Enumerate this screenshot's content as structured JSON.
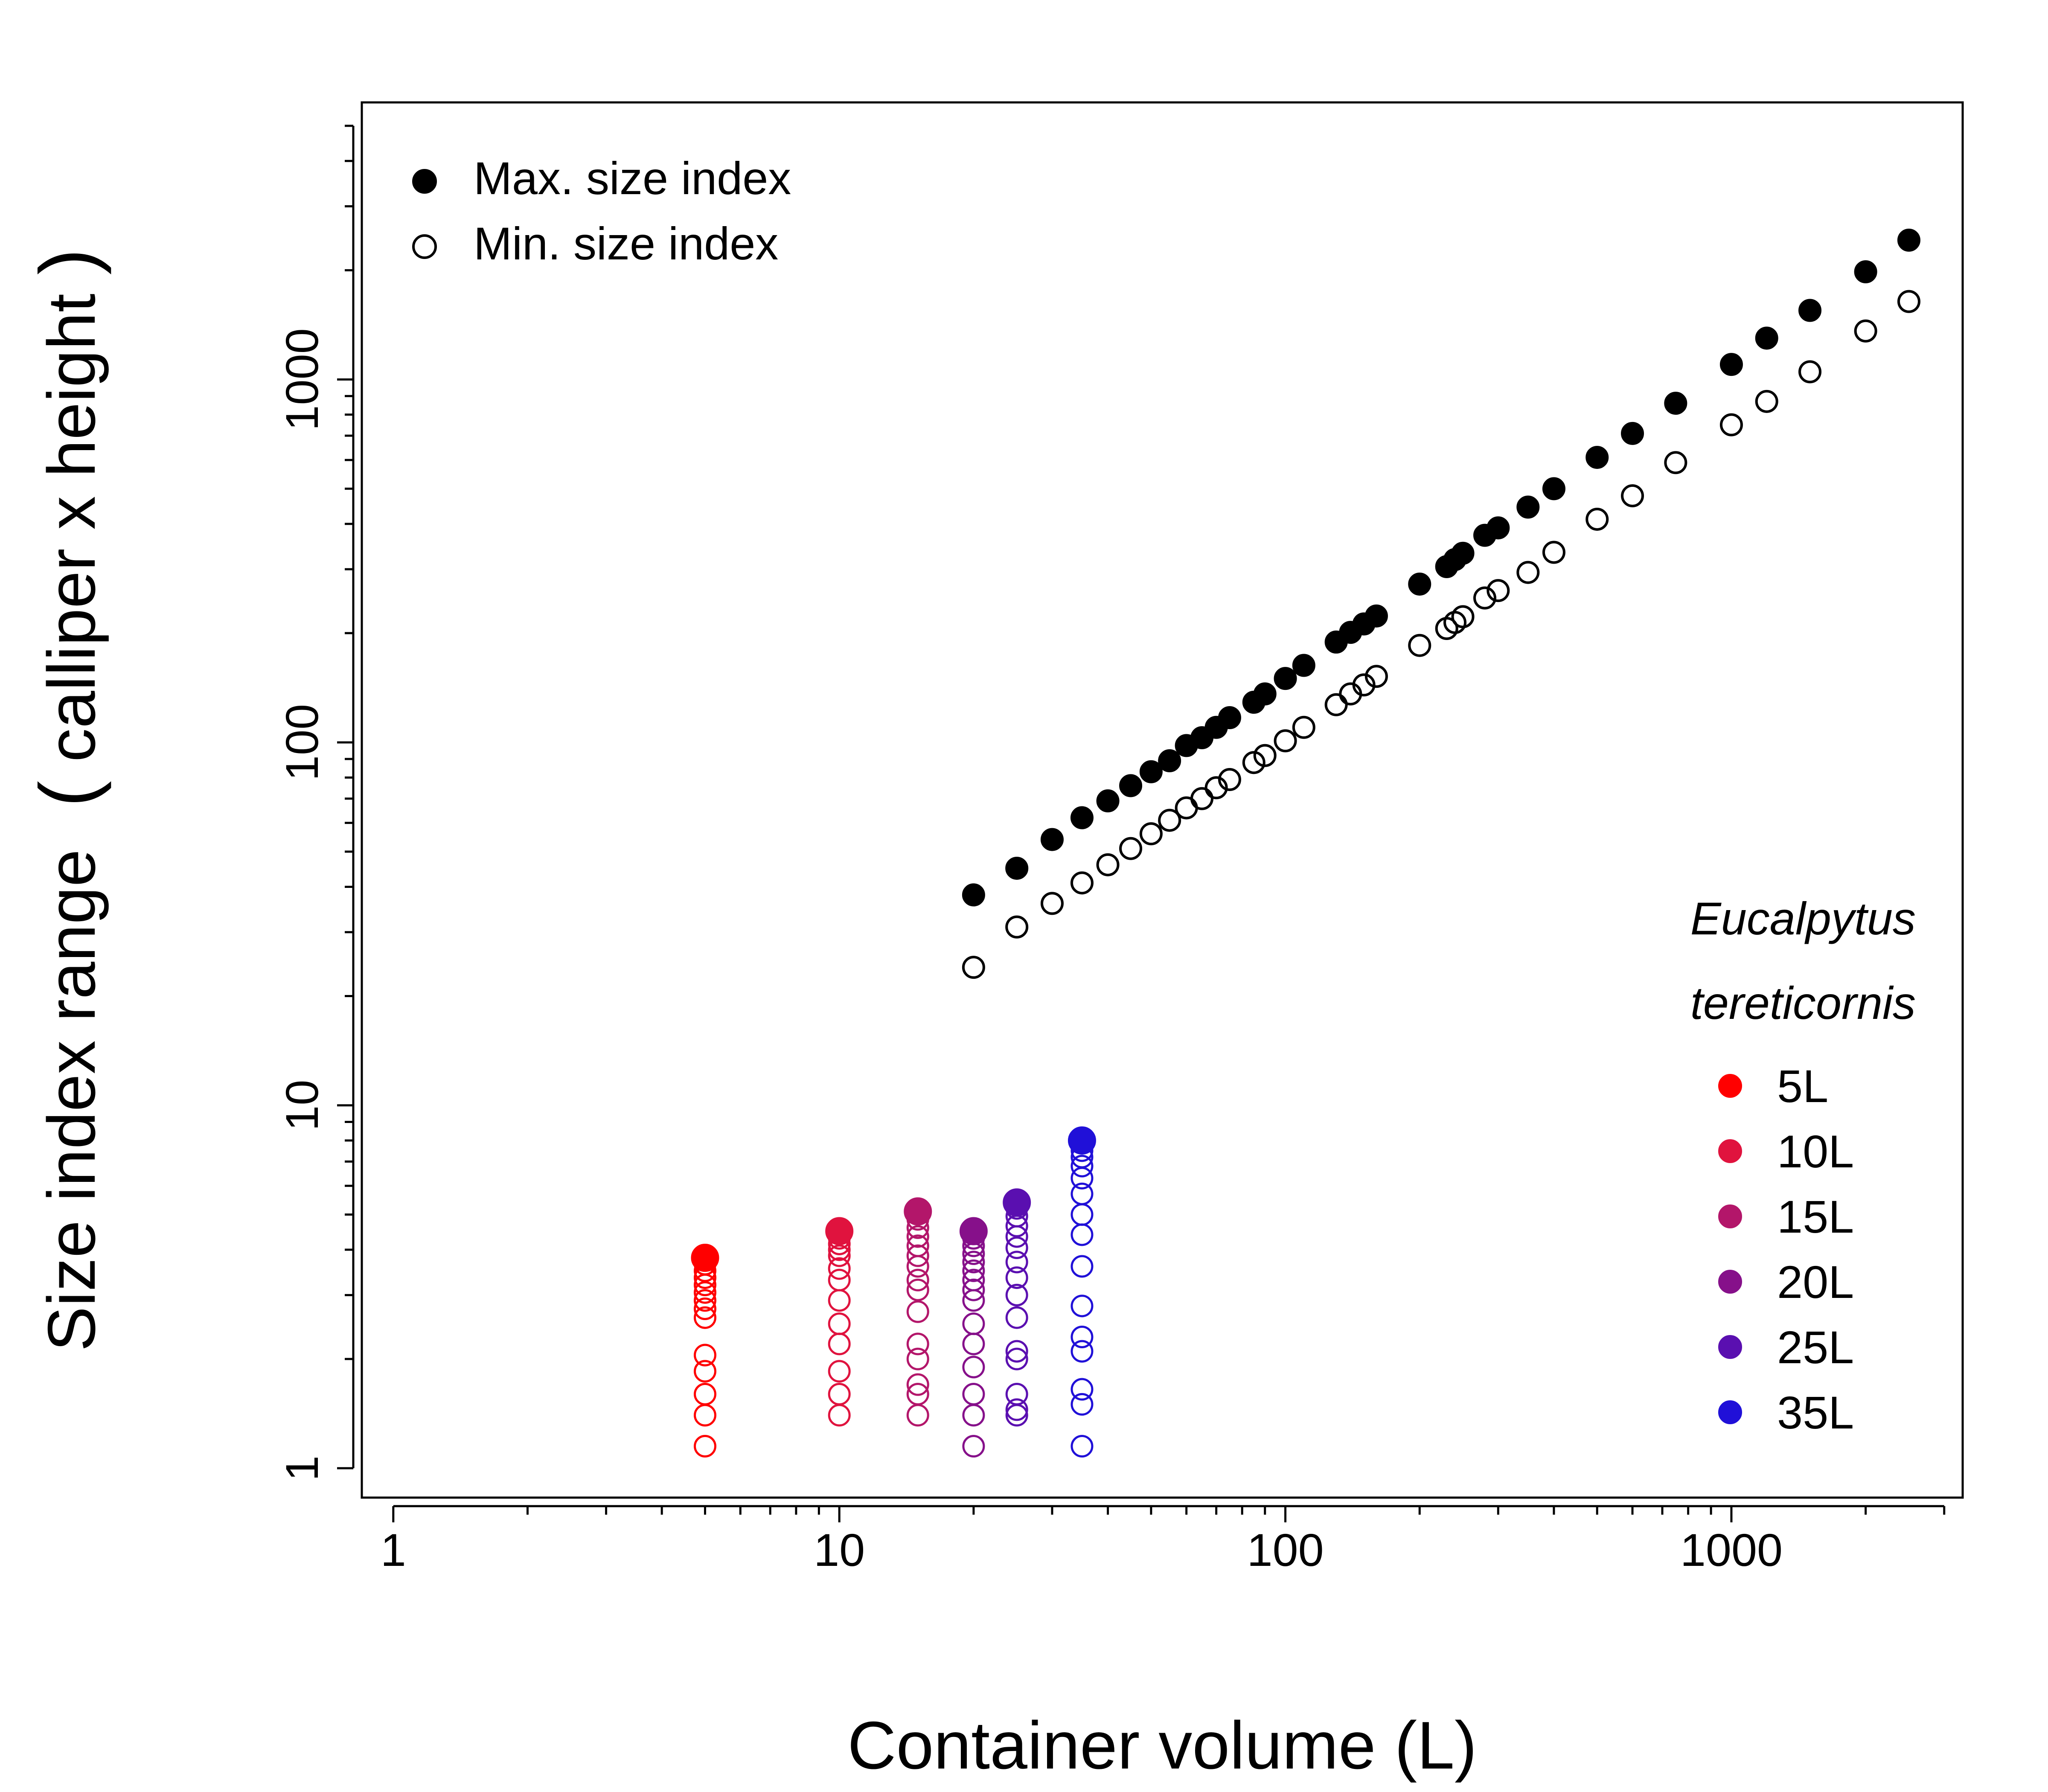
{
  "chart_data": {
    "type": "scatter",
    "xlabel": "Container volume (L)",
    "ylabel": "Size index range",
    "ylabel_paren": "(",
    "ylabel_inner": "calliper x height",
    "ylabel_paren_close": ")",
    "x_scale": "log",
    "y_scale": "log",
    "xlim": [
      0.85,
      3300
    ],
    "ylim": [
      0.83,
      5800
    ],
    "x_ticks": [
      1,
      10,
      100,
      1000
    ],
    "x_tick_labels": [
      "1",
      "10",
      "100",
      "1000"
    ],
    "y_ticks": [
      1,
      10,
      100,
      1000
    ],
    "y_tick_labels": [
      "1",
      "10",
      "100",
      "1000"
    ],
    "grid": false,
    "legend_position": "top-left",
    "legend": [
      {
        "label": "Max. size index",
        "marker": "filled"
      },
      {
        "label": "Min. size index",
        "marker": "open"
      }
    ],
    "series": [
      {
        "name": "Max. size index",
        "marker": "filled",
        "color": "#000000",
        "points": [
          [
            20,
            38
          ],
          [
            25,
            45
          ],
          [
            30,
            54
          ],
          [
            35,
            62
          ],
          [
            40,
            69
          ],
          [
            45,
            76
          ],
          [
            50,
            83
          ],
          [
            55,
            89
          ],
          [
            60,
            98
          ],
          [
            65,
            103
          ],
          [
            70,
            110
          ],
          [
            75,
            117
          ],
          [
            85,
            129
          ],
          [
            90,
            136
          ],
          [
            100,
            150
          ],
          [
            110,
            163
          ],
          [
            130,
            189
          ],
          [
            140,
            201
          ],
          [
            150,
            212
          ],
          [
            160,
            223
          ],
          [
            200,
            273
          ],
          [
            230,
            305
          ],
          [
            240,
            319
          ],
          [
            250,
            332
          ],
          [
            280,
            372
          ],
          [
            300,
            390
          ],
          [
            350,
            445
          ],
          [
            400,
            500
          ],
          [
            500,
            610
          ],
          [
            600,
            710
          ],
          [
            750,
            860
          ],
          [
            1000,
            1100
          ],
          [
            1200,
            1300
          ],
          [
            1500,
            1550
          ],
          [
            2000,
            1980
          ],
          [
            2500,
            2420
          ]
        ]
      },
      {
        "name": "Min. size index",
        "marker": "open",
        "color": "#000000",
        "points": [
          [
            20,
            24
          ],
          [
            25,
            31
          ],
          [
            30,
            36
          ],
          [
            35,
            41
          ],
          [
            40,
            46
          ],
          [
            45,
            51
          ],
          [
            50,
            56
          ],
          [
            55,
            61
          ],
          [
            60,
            66
          ],
          [
            65,
            70
          ],
          [
            70,
            75
          ],
          [
            75,
            79
          ],
          [
            85,
            88
          ],
          [
            90,
            92
          ],
          [
            100,
            101
          ],
          [
            110,
            110
          ],
          [
            130,
            127
          ],
          [
            140,
            136
          ],
          [
            150,
            144
          ],
          [
            160,
            152
          ],
          [
            200,
            185
          ],
          [
            230,
            206
          ],
          [
            240,
            214
          ],
          [
            250,
            222
          ],
          [
            280,
            250
          ],
          [
            300,
            262
          ],
          [
            350,
            294
          ],
          [
            400,
            334
          ],
          [
            500,
            412
          ],
          [
            600,
            478
          ],
          [
            750,
            590
          ],
          [
            1000,
            750
          ],
          [
            1200,
            870
          ],
          [
            1500,
            1050
          ],
          [
            2000,
            1360
          ],
          [
            2500,
            1640
          ]
        ]
      }
    ],
    "species_legend": {
      "title_line1": "Eucalpytus",
      "title_line2": "tereticornis",
      "entries": [
        {
          "label": "5L",
          "color": "#ff0000"
        },
        {
          "label": "10L",
          "color": "#e0133e"
        },
        {
          "label": "15L",
          "color": "#b3166a"
        },
        {
          "label": "20L",
          "color": "#86108a"
        },
        {
          "label": "25L",
          "color": "#5a0fb0"
        },
        {
          "label": "35L",
          "color": "#2010d8"
        }
      ]
    },
    "container_groups": [
      {
        "volume": 5,
        "label": "5L",
        "color": "#ff0000",
        "max": 3.8,
        "values": [
          1.15,
          1.4,
          1.6,
          1.85,
          2.05,
          2.6,
          2.75,
          2.9,
          3.05,
          3.2,
          3.35,
          3.5,
          3.65,
          3.8
        ]
      },
      {
        "volume": 10,
        "label": "10L",
        "color": "#e0133e",
        "max": 4.5,
        "values": [
          1.4,
          1.6,
          1.85,
          2.2,
          2.5,
          2.9,
          3.3,
          3.55,
          3.85,
          4.0,
          4.15,
          4.3,
          4.45,
          4.5
        ]
      },
      {
        "volume": 15,
        "label": "15L",
        "color": "#b3166a",
        "max": 5.1,
        "values": [
          1.4,
          1.6,
          1.7,
          2.0,
          2.2,
          2.7,
          3.1,
          3.3,
          3.6,
          3.85,
          4.1,
          4.35,
          4.6,
          4.85,
          5.1
        ]
      },
      {
        "volume": 20,
        "label": "20L",
        "color": "#86108a",
        "max": 4.5,
        "values": [
          1.15,
          1.4,
          1.6,
          1.9,
          2.2,
          2.5,
          2.9,
          3.1,
          3.3,
          3.5,
          3.7,
          3.9,
          4.1,
          4.3,
          4.5
        ]
      },
      {
        "volume": 25,
        "label": "25L",
        "color": "#5a0fb0",
        "max": 5.4,
        "values": [
          1.4,
          1.45,
          1.6,
          2.0,
          2.1,
          2.6,
          3.0,
          3.35,
          3.7,
          4.05,
          4.35,
          4.65,
          4.95,
          5.2,
          5.4
        ]
      },
      {
        "volume": 35,
        "label": "35L",
        "color": "#2010d8",
        "max": 8.0,
        "values": [
          1.15,
          1.5,
          1.65,
          2.1,
          2.3,
          2.8,
          3.6,
          4.4,
          5.0,
          5.7,
          6.3,
          6.8,
          7.2,
          7.5,
          8.0
        ]
      }
    ]
  }
}
